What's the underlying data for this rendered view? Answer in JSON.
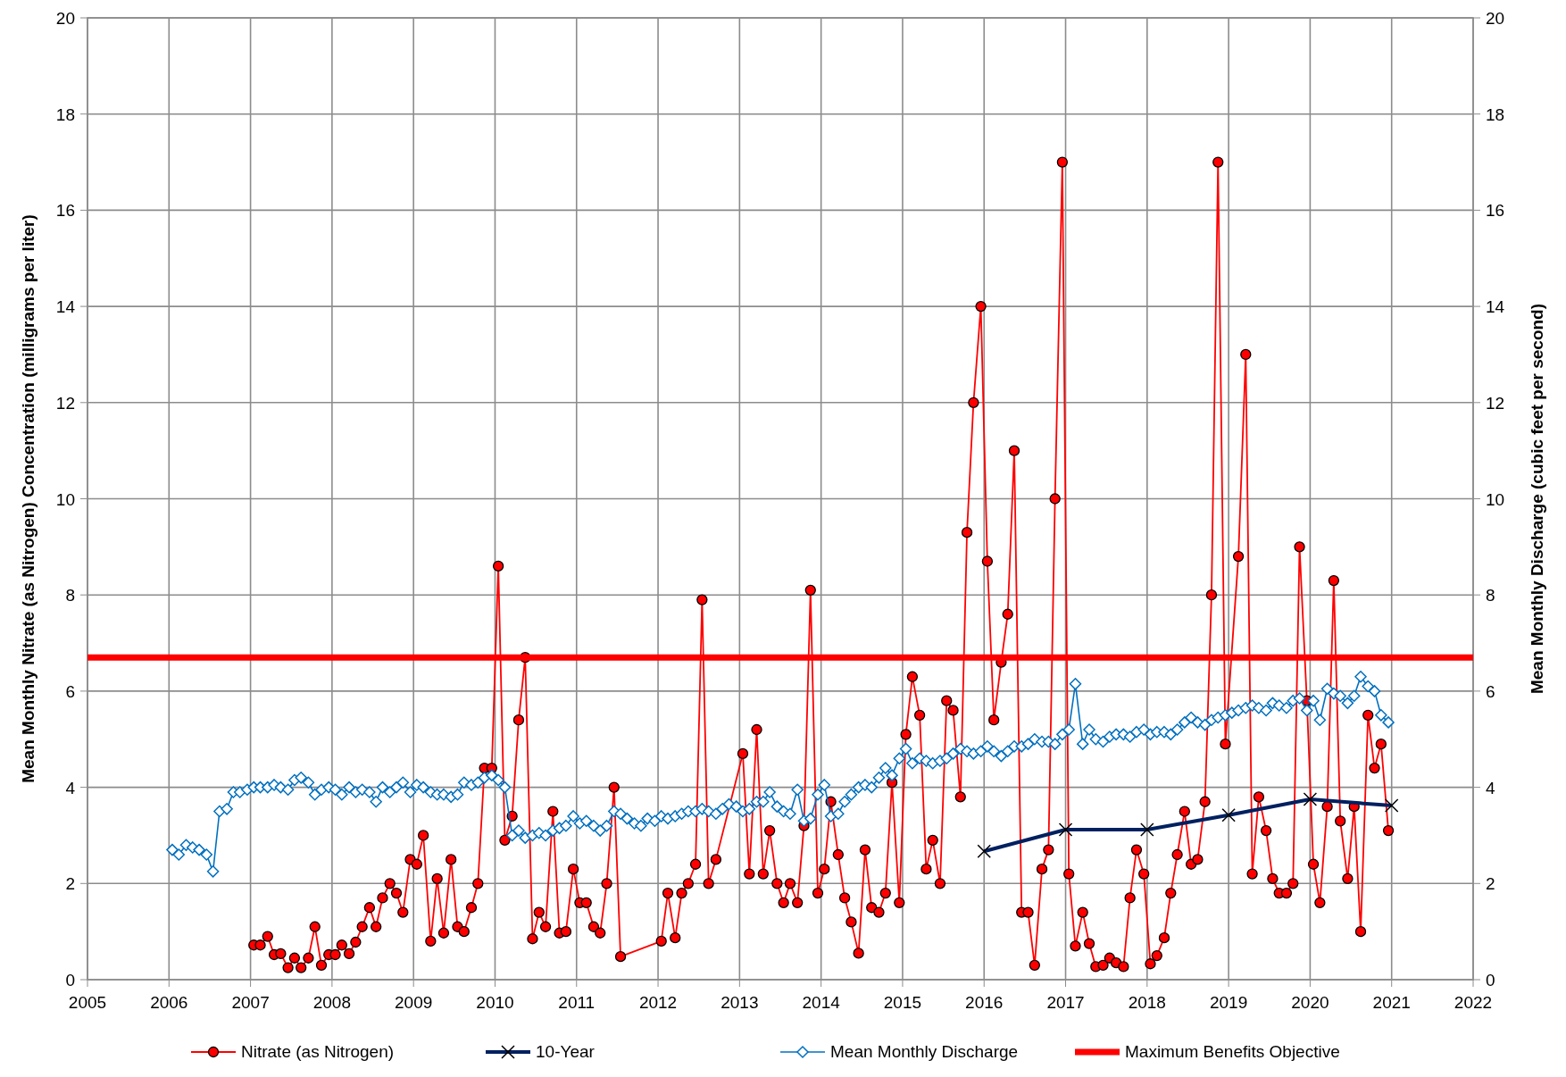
{
  "chart_data": {
    "type": "line",
    "ylabel": "Mean Monthly Nitrate (as Nitrogen) Concentration (milligrams per liter)",
    "y2label": "Mean Monthly Discharge (cubic feet per second)",
    "xlim": [
      2005,
      2022
    ],
    "xticks": [
      2005,
      2006,
      2007,
      2008,
      2009,
      2010,
      2011,
      2012,
      2013,
      2014,
      2015,
      2016,
      2017,
      2018,
      2019,
      2020,
      2021,
      2022
    ],
    "ylim": [
      0,
      20
    ],
    "yticks": [
      0,
      2,
      4,
      6,
      8,
      10,
      12,
      14,
      16,
      18,
      20
    ],
    "y2lim": [
      0,
      20
    ],
    "y2ticks": [
      0,
      2,
      4,
      6,
      8,
      10,
      12,
      14,
      16,
      18,
      20
    ],
    "grid": true,
    "legend": "bottom",
    "ref_lines": [
      {
        "axis": "y",
        "value": 6.7,
        "label": "Maximum Benefits Objective",
        "color": "#ff0000"
      }
    ],
    "series": [
      {
        "name": "Nitrate (as Nitrogen)",
        "color": "#ff0000",
        "marker": "circle",
        "x": [
          2007.04,
          2007.12,
          2007.21,
          2007.29,
          2007.37,
          2007.46,
          2007.54,
          2007.62,
          2007.71,
          2007.79,
          2007.87,
          2007.96,
          2008.04,
          2008.12,
          2008.21,
          2008.29,
          2008.37,
          2008.46,
          2008.54,
          2008.62,
          2008.71,
          2008.79,
          2008.87,
          2008.96,
          2009.04,
          2009.12,
          2009.21,
          2009.29,
          2009.37,
          2009.46,
          2009.54,
          2009.62,
          2009.71,
          2009.79,
          2009.87,
          2009.96,
          2010.04,
          2010.12,
          2010.21,
          2010.29,
          2010.37,
          2010.46,
          2010.54,
          2010.62,
          2010.71,
          2010.79,
          2010.87,
          2010.96,
          2011.04,
          2011.12,
          2011.21,
          2011.29,
          2011.37,
          2011.46,
          2011.54,
          2012.04,
          2012.12,
          2012.21,
          2012.29,
          2012.37,
          2012.46,
          2012.54,
          2012.62,
          2012.71,
          2013.04,
          2013.12,
          2013.21,
          2013.29,
          2013.37,
          2013.46,
          2013.54,
          2013.62,
          2013.71,
          2013.79,
          2013.87,
          2013.96,
          2014.04,
          2014.12,
          2014.21,
          2014.29,
          2014.37,
          2014.46,
          2014.54,
          2014.62,
          2014.71,
          2014.79,
          2014.87,
          2014.96,
          2015.04,
          2015.12,
          2015.21,
          2015.29,
          2015.37,
          2015.46,
          2015.54,
          2015.62,
          2015.71,
          2015.79,
          2015.87,
          2015.96,
          2016.04,
          2016.12,
          2016.21,
          2016.29,
          2016.37,
          2016.46,
          2016.54,
          2016.62,
          2016.71,
          2016.79,
          2016.87,
          2016.96,
          2017.04,
          2017.12,
          2017.21,
          2017.29,
          2017.37,
          2017.46,
          2017.54,
          2017.62,
          2017.71,
          2017.79,
          2017.87,
          2017.96,
          2018.04,
          2018.12,
          2018.21,
          2018.29,
          2018.37,
          2018.46,
          2018.54,
          2018.62,
          2018.71,
          2018.79,
          2018.87,
          2018.96,
          2019.12,
          2019.21,
          2019.29,
          2019.37,
          2019.46,
          2019.54,
          2019.62,
          2019.71,
          2019.79,
          2019.87,
          2019.96,
          2020.04,
          2020.12,
          2020.21,
          2020.29,
          2020.37,
          2020.46,
          2020.54,
          2020.62,
          2020.71,
          2020.79,
          2020.87,
          2020.96
        ],
        "values": [
          0.72,
          0.72,
          0.9,
          0.52,
          0.54,
          0.25,
          0.45,
          0.25,
          0.45,
          1.1,
          0.3,
          0.52,
          0.52,
          0.72,
          0.54,
          0.78,
          1.1,
          1.5,
          1.1,
          1.7,
          2.0,
          1.8,
          1.4,
          2.5,
          2.4,
          3.0,
          0.8,
          2.1,
          0.97,
          2.5,
          1.1,
          1.0,
          1.5,
          2.0,
          4.4,
          4.4,
          8.6,
          2.9,
          3.4,
          5.4,
          6.7,
          0.85,
          1.4,
          1.1,
          3.5,
          0.97,
          1.0,
          2.3,
          1.6,
          1.6,
          1.1,
          0.97,
          2.0,
          4.0,
          0.48,
          0.8,
          1.8,
          0.87,
          1.8,
          2.0,
          2.4,
          7.9,
          2.0,
          2.5,
          4.7,
          2.2,
          5.2,
          2.2,
          3.1,
          2.0,
          1.6,
          2.0,
          1.6,
          3.2,
          8.1,
          1.8,
          2.3,
          3.7,
          2.6,
          1.7,
          1.2,
          0.55,
          2.7,
          1.5,
          1.4,
          1.8,
          4.1,
          1.6,
          5.1,
          6.3,
          5.5,
          2.3,
          2.9,
          2.0,
          5.8,
          5.6,
          3.8,
          9.3,
          12,
          14,
          8.7,
          5.4,
          6.6,
          7.6,
          11,
          1.4,
          1.4,
          0.3,
          2.3,
          2.7,
          10,
          17,
          2.2,
          0.7,
          1.4,
          0.75,
          0.27,
          0.3,
          0.45,
          0.35,
          0.27,
          1.7,
          2.7,
          2.2,
          0.33,
          0.5,
          0.87,
          1.8,
          2.6,
          3.5,
          2.4,
          2.5,
          3.7,
          8.0,
          17,
          4.9,
          8.8,
          13,
          2.2,
          3.8,
          3.1,
          2.1,
          1.8,
          1.8,
          2.0,
          9.0,
          5.8,
          2.4,
          1.6,
          3.6,
          8.3,
          3.3,
          2.1,
          3.6,
          1.0,
          5.5,
          4.4,
          4.9,
          3.1
        ]
      },
      {
        "name": "10-Year",
        "color": "#002060",
        "marker": "cross",
        "x": [
          2016,
          2017,
          2018,
          2019,
          2020,
          2021
        ],
        "values": [
          2.67,
          3.12,
          3.12,
          3.42,
          3.75,
          3.62
        ]
      },
      {
        "name": "Mean Monthly Discharge",
        "color": "#0070c0",
        "marker": "diamond",
        "x": [
          2006.04,
          2006.12,
          2006.21,
          2006.29,
          2006.37,
          2006.46,
          2006.54,
          2006.62,
          2006.71,
          2006.79,
          2006.87,
          2006.96,
          2007.04,
          2007.12,
          2007.21,
          2007.29,
          2007.37,
          2007.46,
          2007.54,
          2007.62,
          2007.71,
          2007.79,
          2007.87,
          2007.96,
          2008.04,
          2008.12,
          2008.21,
          2008.29,
          2008.37,
          2008.46,
          2008.54,
          2008.62,
          2008.71,
          2008.79,
          2008.87,
          2008.96,
          2009.04,
          2009.12,
          2009.21,
          2009.29,
          2009.37,
          2009.46,
          2009.54,
          2009.62,
          2009.71,
          2009.79,
          2009.87,
          2009.96,
          2010.04,
          2010.12,
          2010.21,
          2010.29,
          2010.37,
          2010.46,
          2010.54,
          2010.62,
          2010.71,
          2010.79,
          2010.87,
          2010.96,
          2011.04,
          2011.12,
          2011.21,
          2011.29,
          2011.37,
          2011.46,
          2011.54,
          2011.62,
          2011.71,
          2011.79,
          2011.87,
          2011.96,
          2012.04,
          2012.12,
          2012.21,
          2012.29,
          2012.37,
          2012.46,
          2012.54,
          2012.62,
          2012.71,
          2012.79,
          2012.87,
          2012.96,
          2013.04,
          2013.12,
          2013.21,
          2013.29,
          2013.37,
          2013.46,
          2013.54,
          2013.62,
          2013.71,
          2013.79,
          2013.87,
          2013.96,
          2014.04,
          2014.12,
          2014.21,
          2014.29,
          2014.37,
          2014.46,
          2014.54,
          2014.62,
          2014.71,
          2014.79,
          2014.87,
          2014.96,
          2015.04,
          2015.12,
          2015.21,
          2015.29,
          2015.37,
          2015.46,
          2015.54,
          2015.62,
          2015.71,
          2015.79,
          2015.87,
          2015.96,
          2016.04,
          2016.12,
          2016.21,
          2016.29,
          2016.37,
          2016.46,
          2016.54,
          2016.62,
          2016.71,
          2016.79,
          2016.87,
          2016.96,
          2017.04,
          2017.12,
          2017.21,
          2017.29,
          2017.37,
          2017.46,
          2017.54,
          2017.62,
          2017.71,
          2017.79,
          2017.87,
          2017.96,
          2018.04,
          2018.12,
          2018.21,
          2018.29,
          2018.37,
          2018.46,
          2018.54,
          2018.62,
          2018.71,
          2018.79,
          2018.87,
          2018.96,
          2019.04,
          2019.12,
          2019.21,
          2019.29,
          2019.37,
          2019.46,
          2019.54,
          2019.62,
          2019.71,
          2019.79,
          2019.87,
          2019.96,
          2020.04,
          2020.12,
          2020.21,
          2020.29,
          2020.37,
          2020.46,
          2020.54,
          2020.62,
          2020.71,
          2020.79,
          2020.87,
          2020.96
        ],
        "values": [
          2.7,
          2.6,
          2.8,
          2.75,
          2.7,
          2.6,
          2.25,
          3.5,
          3.55,
          3.9,
          3.9,
          3.95,
          4.0,
          4.0,
          4.0,
          4.05,
          4.0,
          3.95,
          4.15,
          4.2,
          4.1,
          3.85,
          3.95,
          4.0,
          3.95,
          3.85,
          4.0,
          3.9,
          3.95,
          3.9,
          3.7,
          4.0,
          3.9,
          4.0,
          4.1,
          3.9,
          4.05,
          4.0,
          3.9,
          3.85,
          3.85,
          3.8,
          3.85,
          4.1,
          4.05,
          4.1,
          4.2,
          4.25,
          4.15,
          4.0,
          3.0,
          3.1,
          2.95,
          3.0,
          3.05,
          3.0,
          3.1,
          3.15,
          3.2,
          3.4,
          3.25,
          3.3,
          3.2,
          3.1,
          3.2,
          3.5,
          3.45,
          3.35,
          3.25,
          3.2,
          3.35,
          3.3,
          3.4,
          3.35,
          3.4,
          3.45,
          3.5,
          3.5,
          3.55,
          3.5,
          3.45,
          3.55,
          3.65,
          3.6,
          3.5,
          3.55,
          3.7,
          3.7,
          3.9,
          3.6,
          3.5,
          3.45,
          3.95,
          3.3,
          3.35,
          3.85,
          4.05,
          3.4,
          3.45,
          3.7,
          3.85,
          4.0,
          4.05,
          4.0,
          4.2,
          4.4,
          4.25,
          4.6,
          4.8,
          4.5,
          4.6,
          4.55,
          4.5,
          4.55,
          4.6,
          4.7,
          4.8,
          4.75,
          4.7,
          4.75,
          4.85,
          4.75,
          4.65,
          4.75,
          4.85,
          4.85,
          4.9,
          5.0,
          4.95,
          4.95,
          4.9,
          5.1,
          5.2,
          6.15,
          4.9,
          5.2,
          5.0,
          4.95,
          5.05,
          5.1,
          5.1,
          5.05,
          5.15,
          5.2,
          5.1,
          5.15,
          5.15,
          5.1,
          5.2,
          5.35,
          5.45,
          5.35,
          5.3,
          5.4,
          5.45,
          5.5,
          5.55,
          5.6,
          5.65,
          5.7,
          5.65,
          5.6,
          5.75,
          5.7,
          5.65,
          5.8,
          5.85,
          5.6,
          5.8,
          5.4,
          6.05,
          5.95,
          5.9,
          5.75,
          5.9,
          6.3,
          6.1,
          6.0,
          5.5,
          5.35
        ]
      }
    ]
  }
}
